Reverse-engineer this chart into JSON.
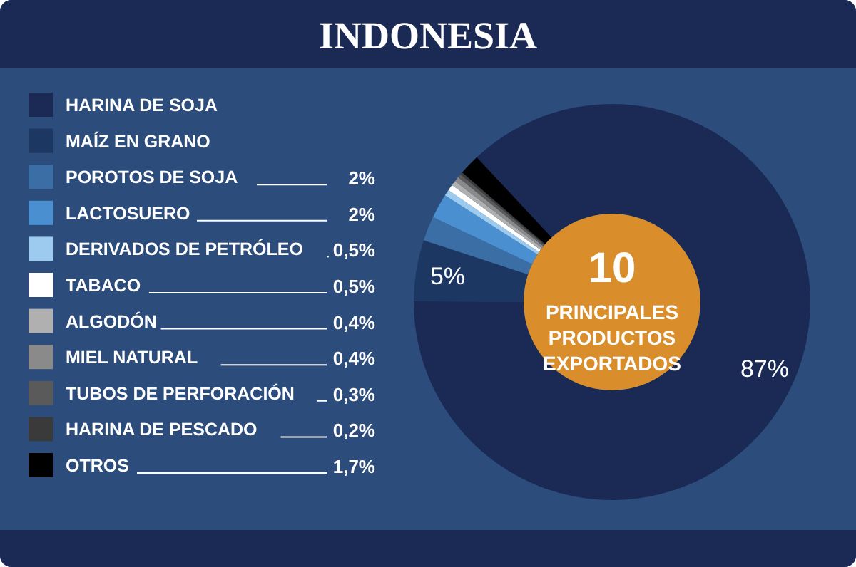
{
  "chart_data": {
    "type": "donut",
    "title": "INDONESIA",
    "categories": [
      "HARINA DE SOJA",
      "MAÍZ EN GRANO",
      "POROTOS DE SOJA",
      "LACTOSUERO",
      "DERIVADOS DE PETRÓLEO",
      "TABACO",
      "ALGODÓN",
      "MIEL NATURAL",
      "TUBOS DE PERFORACIÓN",
      "HARINA DE PESCADO",
      "OTROS"
    ],
    "values": [
      87,
      5,
      2,
      2,
      0.5,
      0.5,
      0.4,
      0.4,
      0.3,
      0.2,
      1.7
    ],
    "value_labels": [
      "87%",
      "5%",
      "2%",
      "2%",
      "0,5%",
      "0,5%",
      "0,4%",
      "0,4%",
      "0,3%",
      "0,2%",
      "1,7%"
    ],
    "colors": [
      "#1b2a55",
      "#1d3763",
      "#3a6ea5",
      "#4a8fd0",
      "#9ccbef",
      "#ffffff",
      "#b0b0b0",
      "#8a8a8a",
      "#5a5a5a",
      "#3a3a3a",
      "#000000"
    ],
    "annotations": [
      "10 PRINCIPALES PRODUCTOS EXPORTADOS"
    ],
    "legend": "left"
  }
}
